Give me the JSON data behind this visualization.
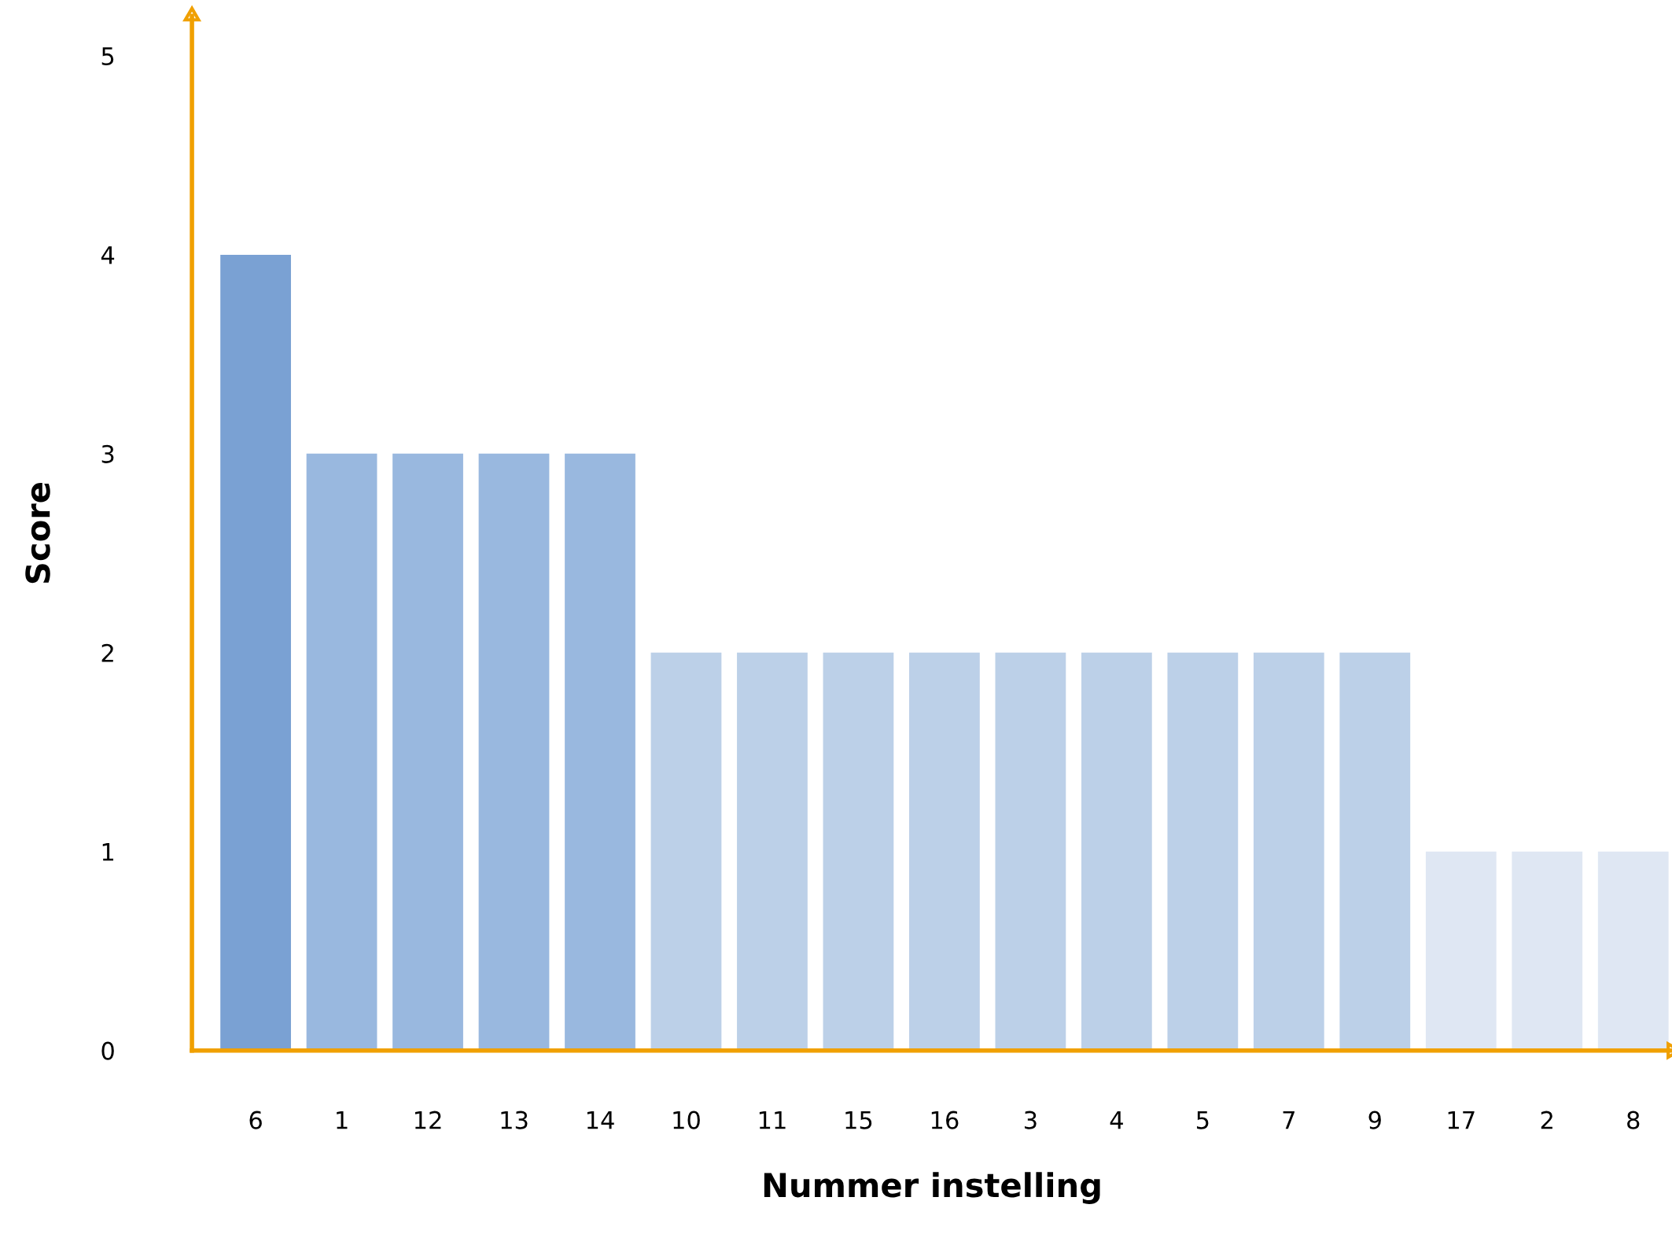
{
  "chart_data": {
    "type": "bar",
    "xlabel": "Nummer instelling",
    "ylabel": "Score",
    "categories": [
      "6",
      "1",
      "12",
      "13",
      "14",
      "10",
      "11",
      "15",
      "16",
      "3",
      "4",
      "5",
      "7",
      "9",
      "17",
      "2",
      "8"
    ],
    "values": [
      4,
      3,
      3,
      3,
      3,
      2,
      2,
      2,
      2,
      2,
      2,
      2,
      2,
      2,
      1,
      1,
      1
    ],
    "colors": [
      "#7aa1d3",
      "#99b8df",
      "#99b8df",
      "#99b8df",
      "#99b8df",
      "#bcd0e8",
      "#bcd0e8",
      "#bcd0e8",
      "#bcd0e8",
      "#bcd0e8",
      "#bcd0e8",
      "#bcd0e8",
      "#bcd0e8",
      "#bcd0e8",
      "#dfe7f3",
      "#dfe7f3",
      "#dfe7f3"
    ],
    "ylim": [
      0,
      5.2
    ],
    "yticks": [
      0,
      1,
      2,
      3,
      4,
      5
    ],
    "grid": false,
    "legend": false
  }
}
